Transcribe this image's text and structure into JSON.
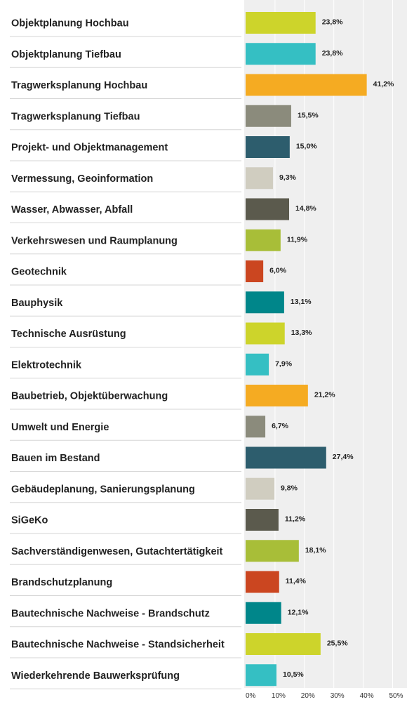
{
  "chart_data": {
    "type": "bar",
    "orientation": "horizontal",
    "title": "",
    "xlabel": "",
    "ylabel": "",
    "xlim": [
      0,
      55
    ],
    "grid": true,
    "legend": "none",
    "tick_values": [
      0,
      10,
      20,
      30,
      40,
      50
    ],
    "tick_labels": [
      "0%",
      "10%",
      "20%",
      "30%",
      "40%",
      "50%"
    ],
    "categories": [
      "Objektplanung Hochbau",
      "Objektplanung Tiefbau",
      "Tragwerksplanung Hochbau",
      "Tragwerksplanung Tiefbau",
      "Projekt- und Objektmanagement",
      "Vermessung, Geoinformation",
      "Wasser, Abwasser, Abfall",
      "Verkehrswesen und Raumplanung",
      "Geotechnik",
      "Bauphysik",
      "Technische Ausrüstung",
      "Elektrotechnik",
      "Baubetrieb, Objektüberwachung",
      "Umwelt und Energie",
      "Bauen im Bestand",
      "Gebäudeplanung, Sanierungsplanung",
      "SiGeKo",
      "Sachverständigenwesen, Gutachtertätigkeit",
      "Brandschutzplanung",
      "Bautechnische Nachweise - Brandschutz",
      "Bautechnische Nachweise - Standsicherheit",
      "Wiederkehrende Bauwerksprüfung"
    ],
    "values": [
      23.8,
      23.8,
      41.2,
      15.5,
      15.0,
      9.3,
      14.8,
      11.9,
      6.0,
      13.1,
      13.3,
      7.9,
      21.2,
      6.7,
      27.4,
      9.8,
      11.2,
      18.1,
      11.4,
      12.1,
      25.5,
      10.5
    ],
    "value_labels": [
      "23,8%",
      "23,8%",
      "41,2%",
      "15,5%",
      "15,0%",
      "9,3%",
      "14,8%",
      "11,9%",
      "6,0%",
      "13,1%",
      "13,3%",
      "7,9%",
      "21,2%",
      "6,7%",
      "27,4%",
      "9,8%",
      "11,2%",
      "18,1%",
      "11,4%",
      "12,1%",
      "25,5%",
      "10,5%"
    ],
    "colors": [
      "#cdd42b",
      "#35bfc3",
      "#f5ab22",
      "#8b8b7c",
      "#2d5d6d",
      "#d0cdc0",
      "#5b5a4d",
      "#a8be38",
      "#cb4620",
      "#00868a",
      "#cdd42b",
      "#35bfc3",
      "#f5ab22",
      "#8b8b7c",
      "#2d5d6d",
      "#d0cdc0",
      "#5b5a4d",
      "#a8be38",
      "#cb4620",
      "#00868a",
      "#cdd42b",
      "#35bfc3"
    ],
    "plot_background": "#efefef",
    "grid_color": "#ffffff"
  }
}
